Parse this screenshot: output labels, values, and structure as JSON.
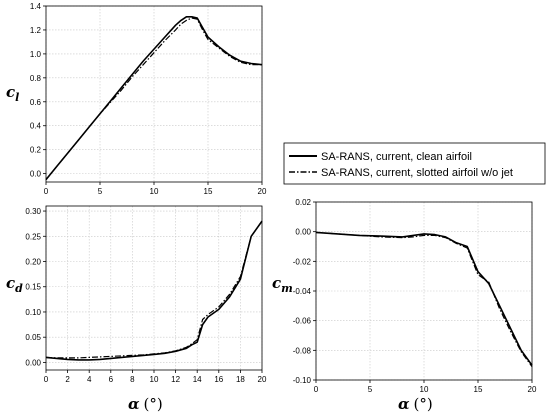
{
  "chart_data": [
    {
      "id": "cl",
      "type": "line",
      "ylabel_main": "c",
      "ylabel_sub": "l",
      "xlim": [
        0,
        20
      ],
      "ylim": [
        -0.07,
        1.4
      ],
      "xticks": [
        "0",
        "5",
        "10",
        "15",
        "20"
      ],
      "yticks": [
        "0.0",
        "0.2",
        "0.4",
        "0.6",
        "0.8",
        "1.0",
        "1.2",
        "1.4"
      ],
      "grid": true,
      "series": [
        {
          "name": "SA-RANS, current, clean airfoil",
          "style": "solid",
          "x": [
            0,
            1,
            2,
            3,
            4,
            5,
            6,
            7,
            8,
            9,
            10,
            11,
            12,
            12.5,
            13,
            13.5,
            14,
            14.5,
            15,
            16,
            17,
            18,
            19,
            20
          ],
          "y": [
            -0.05,
            0.06,
            0.17,
            0.28,
            0.39,
            0.5,
            0.61,
            0.72,
            0.83,
            0.94,
            1.04,
            1.14,
            1.24,
            1.28,
            1.31,
            1.31,
            1.3,
            1.22,
            1.14,
            1.06,
            0.99,
            0.94,
            0.92,
            0.91
          ]
        },
        {
          "name": "SA-RANS, current, slotted airfoil w/o jet",
          "style": "dashdot",
          "x": [
            0,
            1,
            2,
            3,
            4,
            5,
            6,
            7,
            8,
            9,
            10,
            11,
            12,
            12.5,
            13,
            13.5,
            14,
            14.5,
            15,
            16,
            17,
            18,
            19,
            20
          ],
          "y": [
            -0.05,
            0.06,
            0.17,
            0.28,
            0.39,
            0.5,
            0.6,
            0.7,
            0.81,
            0.91,
            1.01,
            1.11,
            1.2,
            1.25,
            1.28,
            1.3,
            1.29,
            1.2,
            1.12,
            1.05,
            0.98,
            0.93,
            0.91,
            0.91
          ]
        }
      ]
    },
    {
      "id": "cd",
      "type": "line",
      "ylabel_main": "c",
      "ylabel_sub": "d",
      "xlim": [
        0,
        20
      ],
      "ylim": [
        -0.015,
        0.31
      ],
      "xticks": [
        "0",
        "2",
        "4",
        "6",
        "8",
        "10",
        "12",
        "14",
        "16",
        "18",
        "20"
      ],
      "yticks": [
        "0.00",
        "0.05",
        "0.10",
        "0.15",
        "0.20",
        "0.25",
        "0.30"
      ],
      "grid": true,
      "series": [
        {
          "name": "SA-RANS, current, clean airfoil",
          "style": "solid",
          "x": [
            0,
            1,
            2,
            3,
            4,
            5,
            6,
            7,
            8,
            9,
            10,
            11,
            12,
            13,
            13.5,
            14,
            14.5,
            15,
            16,
            17,
            18,
            19,
            20
          ],
          "y": [
            0.01,
            0.008,
            0.006,
            0.005,
            0.005,
            0.006,
            0.008,
            0.01,
            0.012,
            0.014,
            0.016,
            0.018,
            0.022,
            0.028,
            0.035,
            0.04,
            0.075,
            0.09,
            0.105,
            0.13,
            0.165,
            0.25,
            0.28
          ]
        },
        {
          "name": "SA-RANS, current, slotted airfoil w/o jet",
          "style": "dashdot",
          "x": [
            0,
            1,
            2,
            3,
            4,
            5,
            6,
            7,
            8,
            9,
            10,
            11,
            12,
            13,
            13.5,
            14,
            14.5,
            15,
            16,
            17,
            18,
            19,
            20
          ],
          "y": [
            0.01,
            0.009,
            0.009,
            0.009,
            0.01,
            0.011,
            0.012,
            0.013,
            0.014,
            0.015,
            0.017,
            0.019,
            0.023,
            0.03,
            0.037,
            0.045,
            0.085,
            0.095,
            0.11,
            0.135,
            0.17,
            0.25,
            0.28
          ]
        }
      ]
    },
    {
      "id": "cm",
      "type": "line",
      "ylabel_main": "c",
      "ylabel_sub": "m",
      "xlim": [
        0,
        20
      ],
      "ylim": [
        -0.1,
        0.02
      ],
      "xticks": [
        "0",
        "5",
        "10",
        "15",
        "20"
      ],
      "yticks": [
        "0.02",
        "0.00",
        "-0.02",
        "-0.04",
        "-0.06",
        "-0.08",
        "-0.10"
      ],
      "grid": true,
      "series": [
        {
          "name": "SA-RANS, current, clean airfoil",
          "style": "solid",
          "x": [
            0,
            2,
            4,
            6,
            8,
            9,
            10,
            11,
            12,
            13,
            14,
            15,
            16,
            17,
            18,
            19,
            20
          ],
          "y": [
            -0.0005,
            -0.0015,
            -0.0025,
            -0.003,
            -0.0035,
            -0.0025,
            -0.0015,
            -0.002,
            -0.0035,
            -0.0075,
            -0.01,
            -0.027,
            -0.035,
            -0.05,
            -0.065,
            -0.08,
            -0.09
          ]
        },
        {
          "name": "SA-RANS, current, slotted airfoil w/o jet",
          "style": "dashdot",
          "x": [
            0,
            2,
            4,
            6,
            8,
            9,
            10,
            11,
            12,
            13,
            14,
            15,
            16,
            17,
            18,
            19,
            20
          ],
          "y": [
            -0.0005,
            -0.0015,
            -0.0025,
            -0.0035,
            -0.004,
            -0.0035,
            -0.0025,
            -0.0025,
            -0.004,
            -0.008,
            -0.011,
            -0.029,
            -0.034,
            -0.052,
            -0.067,
            -0.081,
            -0.091
          ]
        }
      ]
    }
  ],
  "xlabel_main": "α",
  "xlabel_unit": "(°)",
  "legend": {
    "placement": "right",
    "entries": [
      {
        "label": "SA-RANS, current, clean airfoil",
        "style": "solid"
      },
      {
        "label": "SA-RANS, current, slotted airfoil w/o jet",
        "style": "dashdot"
      }
    ]
  }
}
